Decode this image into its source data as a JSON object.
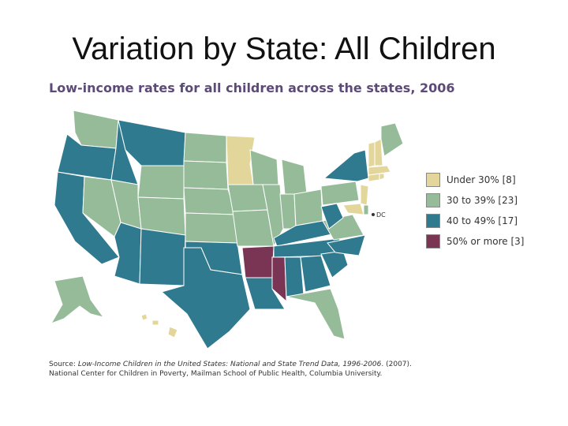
{
  "slide": {
    "title": "Variation by State: All Children"
  },
  "map": {
    "heading": "Low-income rates for all children across the states, 2006",
    "dc_label": "DC",
    "colors": {
      "under30": "#e3d69a",
      "r30to39": "#95bb98",
      "r40to49": "#2f7a8f",
      "r50plus": "#7a3555"
    }
  },
  "legend": {
    "items": [
      {
        "label": "Under 30% [8]",
        "color": "#e3d69a"
      },
      {
        "label": "30 to 39% [23]",
        "color": "#95bb98"
      },
      {
        "label": "40 to 49% [17]",
        "color": "#2f7a8f"
      },
      {
        "label": "50% or more [3]",
        "color": "#7a3555"
      }
    ]
  },
  "source": {
    "prefix": "Source: ",
    "title": "Low-Income Children in the United States: National and State Trend Data, 1996-2006",
    "suffix": ". (2007).",
    "line2": "National Center for Children in Poverty, Mailman School of Public Health, Columbia University."
  }
}
